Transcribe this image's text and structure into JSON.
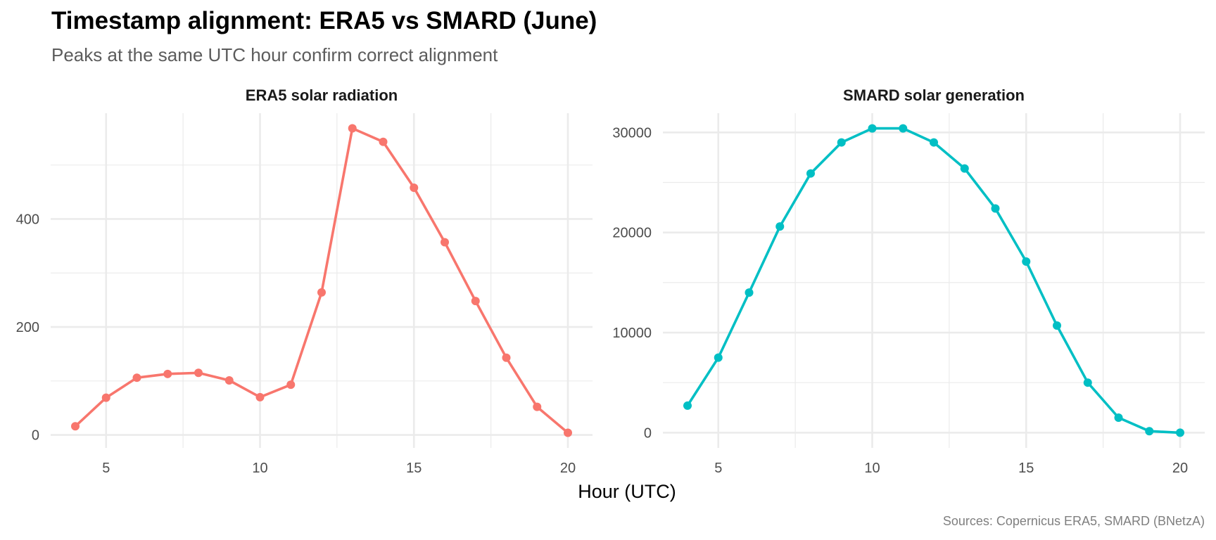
{
  "title": "Timestamp alignment: ERA5 vs SMARD (June)",
  "subtitle": "Peaks at the same UTC hour confirm correct alignment",
  "xlabel": "Hour (UTC)",
  "caption": "Sources: Copernicus ERA5, SMARD (BNetzA)",
  "chart_data": [
    {
      "type": "line",
      "title": "ERA5 solar radiation",
      "xlabel": "Hour (UTC)",
      "ylabel": "",
      "color": "#F8766D",
      "x": [
        4,
        5,
        6,
        7,
        8,
        9,
        10,
        11,
        12,
        13,
        14,
        15,
        16,
        17,
        18,
        19,
        20
      ],
      "values": [
        16,
        69,
        106,
        113,
        115,
        101,
        70,
        93,
        264,
        568,
        543,
        458,
        357,
        248,
        143,
        52,
        4
      ],
      "xlim": [
        3.2,
        20.8
      ],
      "ylim": [
        -24,
        596
      ],
      "x_ticks": [
        5,
        10,
        15,
        20
      ],
      "x_tick_labels": [
        "5",
        "10",
        "15",
        "20"
      ],
      "x_minor": [
        7.5,
        12.5,
        17.5
      ],
      "y_ticks": [
        0,
        200,
        400
      ],
      "y_tick_labels": [
        "0",
        "200",
        "400"
      ],
      "y_minor": [
        100,
        300,
        500
      ],
      "grid": true,
      "markers": true
    },
    {
      "type": "line",
      "title": "SMARD solar generation",
      "xlabel": "Hour (UTC)",
      "ylabel": "",
      "color": "#00BFC4",
      "x": [
        4,
        5,
        6,
        7,
        8,
        9,
        10,
        11,
        12,
        13,
        14,
        15,
        16,
        17,
        18,
        19,
        20
      ],
      "values": [
        2700,
        7500,
        14000,
        20600,
        25900,
        29000,
        30400,
        30400,
        29000,
        26400,
        22400,
        17100,
        10700,
        5000,
        1500,
        150,
        0
      ],
      "xlim": [
        3.2,
        20.8
      ],
      "ylim": [
        -1520,
        31920
      ],
      "x_ticks": [
        5,
        10,
        15,
        20
      ],
      "x_tick_labels": [
        "5",
        "10",
        "15",
        "20"
      ],
      "x_minor": [
        7.5,
        12.5,
        17.5
      ],
      "y_ticks": [
        0,
        10000,
        20000,
        30000
      ],
      "y_tick_labels": [
        "0",
        "10000",
        "20000",
        "30000"
      ],
      "y_minor": [
        5000,
        15000,
        25000
      ],
      "grid": true,
      "markers": true
    }
  ]
}
